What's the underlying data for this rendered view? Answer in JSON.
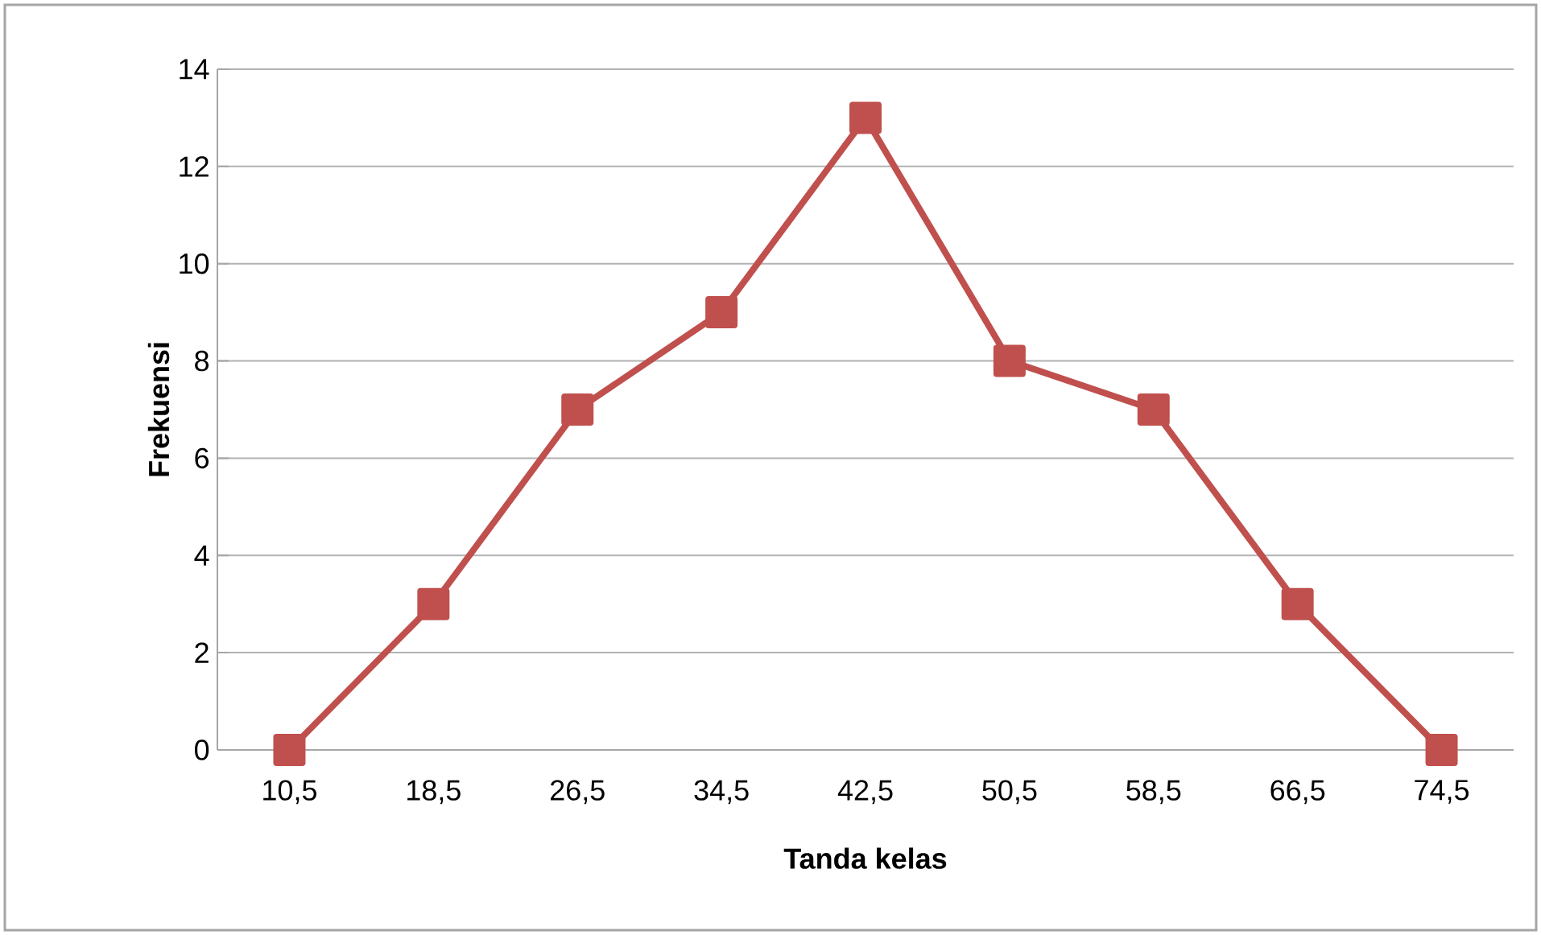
{
  "chart_data": {
    "type": "line",
    "xlabel": "Tanda kelas",
    "ylabel": "Frekuensi",
    "categories": [
      "10,5",
      "18,5",
      "26,5",
      "34,5",
      "42,5",
      "50,5",
      "58,5",
      "66,5",
      "74,5"
    ],
    "series": [
      {
        "color": "#c0504d",
        "values": [
          0,
          3,
          7,
          9,
          13,
          8,
          7,
          3,
          0
        ]
      }
    ],
    "ylim": [
      0,
      14
    ],
    "yticks": [
      0,
      2,
      4,
      6,
      8,
      10,
      12,
      14
    ],
    "grid": "y",
    "marker": "square",
    "line_style": "solid"
  }
}
